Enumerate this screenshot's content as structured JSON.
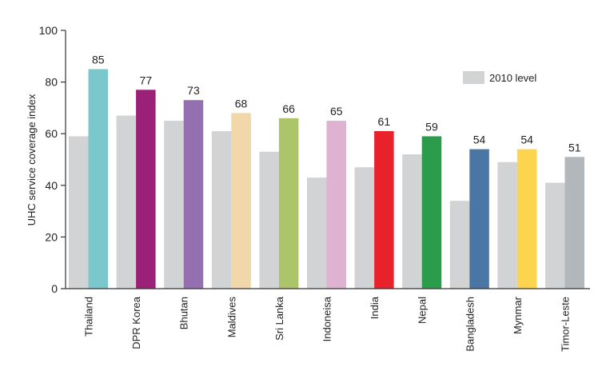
{
  "chart_data": {
    "type": "bar",
    "title": "",
    "xlabel": "",
    "ylabel": "UHC service coverage index",
    "ylim": [
      0,
      100
    ],
    "yticks": [
      0,
      20,
      40,
      60,
      80,
      100
    ],
    "grid": false,
    "legend_position": "top-right",
    "categories": [
      "Thailand",
      "DPR Korea",
      "Bhutan",
      "Maldives",
      "Sri Lanka",
      "Indoneisa",
      "India",
      "Nepal",
      "Bangladesh",
      "Mynmar",
      "Timor-Leste"
    ],
    "series": [
      {
        "name": "2010 level",
        "values": [
          59,
          67,
          65,
          61,
          53,
          43,
          47,
          52,
          34,
          49,
          41
        ],
        "color": "#d1d3d4"
      },
      {
        "values": [
          85,
          77,
          73,
          68,
          66,
          65,
          61,
          59,
          54,
          54,
          51
        ],
        "data_labels": [
          "85",
          "77",
          "73",
          "68",
          "66",
          "65",
          "61",
          "59",
          "54",
          "54",
          "51"
        ],
        "colors": [
          "#7bc8cc",
          "#9b2178",
          "#9570b0",
          "#f2d7aa",
          "#acc46a",
          "#deb2d0",
          "#e8212a",
          "#2a9c4c",
          "#4a76a6",
          "#fdd44e",
          "#b2b7bb"
        ]
      }
    ]
  }
}
